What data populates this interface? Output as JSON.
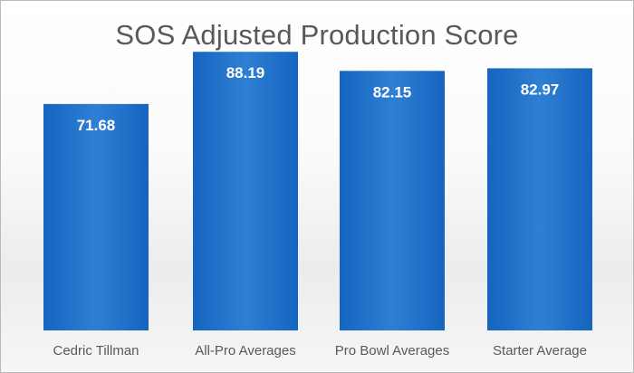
{
  "chart_data": {
    "type": "bar",
    "title": "SOS Adjusted Production Score",
    "categories": [
      "Cedric Tillman",
      "All-Pro Averages",
      "Pro Bowl Averages",
      "Starter Average"
    ],
    "values": [
      71.68,
      88.19,
      82.15,
      82.97
    ],
    "value_labels": [
      "71.68",
      "88.19",
      "82.15",
      "82.97"
    ],
    "xlabel": "",
    "ylabel": "",
    "ylim": [
      0,
      100
    ],
    "grid": false,
    "legend": "none",
    "colors": {
      "bar": "#1565c0",
      "bar_light": "#2f7fd4",
      "text": "#595959"
    }
  }
}
